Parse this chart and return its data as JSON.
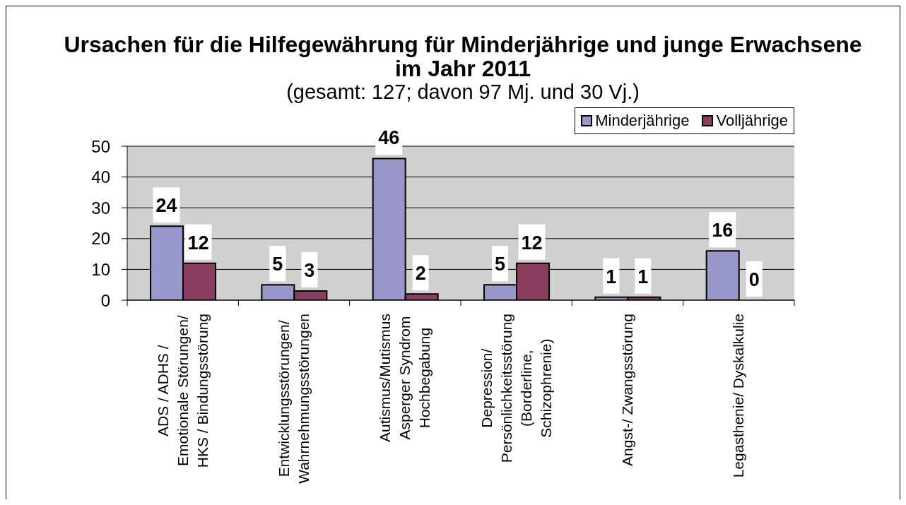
{
  "chart_data": {
    "type": "bar",
    "title": "Ursachen für die Hilfegewährung für Minderjährige und junge Erwachsene im Jahr 2011",
    "subtitle": "(gesamt: 127; davon 97 Mj. und 30 Vj.)",
    "categories": [
      "ADS / ADHS /\nEmotionale Störungen/\nHKS / Bindungsstörung",
      "Entwicklungsstörungen/\nWahrnehmungsstörungen",
      "Autismus/Mutismus\nAsperger Syndrom\nHochbegabung",
      "Depression/\nPersönlichkeitsstörung\n(Borderline,\nSchizophrenie)",
      "Angst-/ Zwangsstörung",
      "Legasthenie/ Dyskalkulie"
    ],
    "series": [
      {
        "name": "Minderjährige",
        "color": "#9797c9",
        "values": [
          24,
          5,
          46,
          5,
          1,
          16
        ]
      },
      {
        "name": "Volljährige",
        "color": "#8b3d5f",
        "values": [
          12,
          3,
          2,
          12,
          1,
          0
        ]
      }
    ],
    "ylim": [
      0,
      50
    ],
    "yticks": [
      0,
      10,
      20,
      30,
      40,
      50
    ],
    "grid": "y",
    "legend": "top right",
    "data_labels": true
  }
}
